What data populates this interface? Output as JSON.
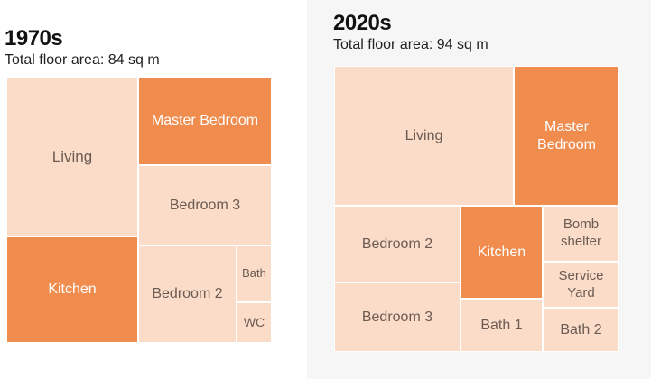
{
  "panels": [
    {
      "heading": "1970s",
      "subtitle": "Total floor area: 84 sq m",
      "rooms": [
        {
          "label": "Living"
        },
        {
          "label": "Master Bedroom"
        },
        {
          "label": "Bedroom 3"
        },
        {
          "label": "Kitchen"
        },
        {
          "label": "Bedroom 2"
        },
        {
          "label": "Bath"
        },
        {
          "label": "WC"
        }
      ]
    },
    {
      "heading": "2020s",
      "subtitle": "Total floor area: 94 sq m",
      "rooms": [
        {
          "label": "Living"
        },
        {
          "label": "Master\nBedroom"
        },
        {
          "label": "Bedroom 2"
        },
        {
          "label": "Kitchen"
        },
        {
          "label": "Bomb\nshelter"
        },
        {
          "label": "Service\nYard"
        },
        {
          "label": "Bedroom 3"
        },
        {
          "label": "Bath 1"
        },
        {
          "label": "Bath 2"
        }
      ]
    }
  ],
  "colors": {
    "highlighted_room": "#ef8c4e",
    "other_room": "#fadcc8",
    "highlighted_text": "#ffffff",
    "other_text": "#6b5b52"
  }
}
